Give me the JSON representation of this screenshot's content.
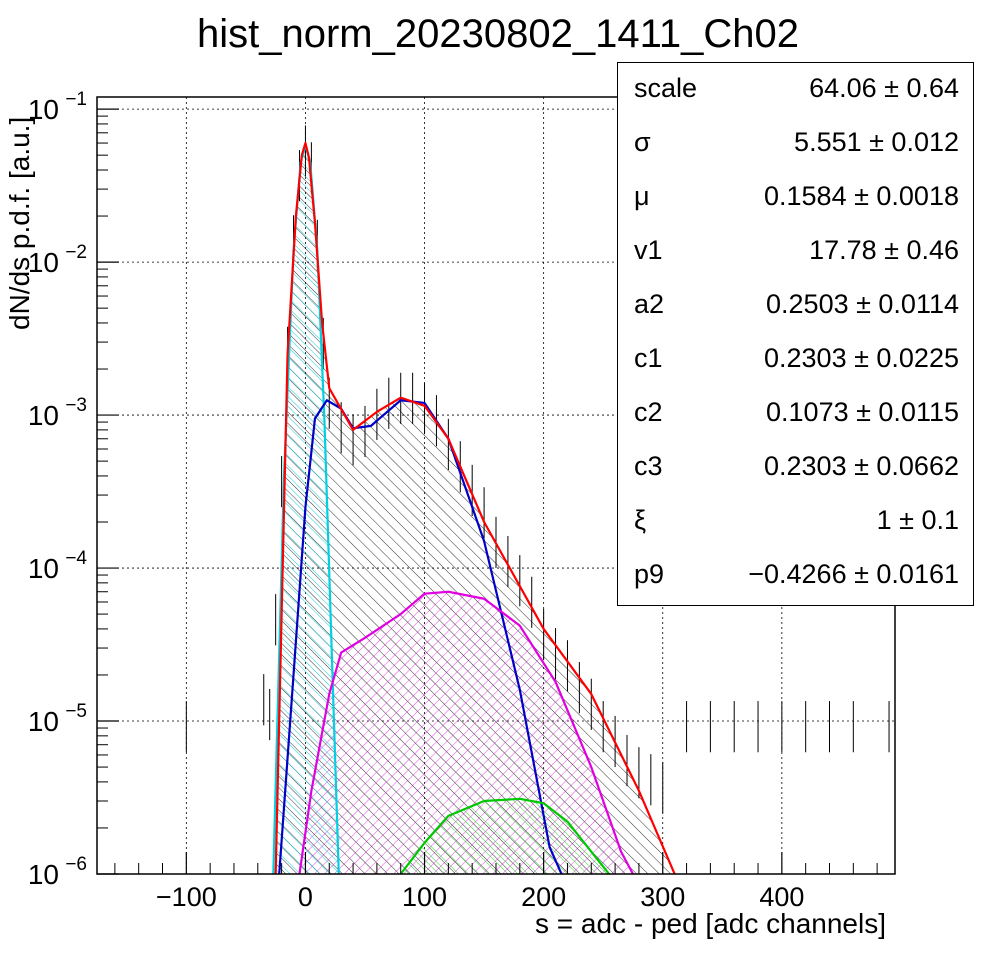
{
  "chart_data": {
    "type": "line",
    "title": "hist_norm_20230802_1411_Ch02",
    "xlabel": "s = adc - ped [adc channels]",
    "ylabel": "dN/ds p.d.f. [a.u.]",
    "xlim": [
      -175,
      495
    ],
    "ylim": [
      1e-06,
      0.12
    ],
    "yscale": "log",
    "grid": true,
    "x_ticks": [
      "−100",
      "0",
      "100",
      "200",
      "300",
      "400"
    ],
    "y_ticks": [
      {
        "base": "10",
        "exp": "−1"
      },
      {
        "base": "10",
        "exp": "−2"
      },
      {
        "base": "10",
        "exp": "−3"
      },
      {
        "base": "10",
        "exp": "−4"
      },
      {
        "base": "10",
        "exp": "−5"
      },
      {
        "base": "10",
        "exp": "−6"
      }
    ],
    "series": [
      {
        "color": "#ff0000",
        "x": [
          -25,
          -15,
          -8,
          -3,
          0,
          3,
          8,
          14,
          20,
          40,
          60,
          80,
          100,
          120,
          150,
          200,
          240,
          280,
          310
        ],
        "y": [
          1e-06,
          0.0025,
          0.02,
          0.05,
          0.06,
          0.048,
          0.018,
          0.004,
          0.0015,
          0.0008,
          0.00105,
          0.0013,
          0.00115,
          0.0007,
          0.0002,
          4e-05,
          1.5e-05,
          3.5e-06,
          1e-06
        ]
      },
      {
        "color": "#00d0e0",
        "x": [
          -27,
          -18,
          -10,
          -4,
          0,
          4,
          10,
          16,
          22,
          28
        ],
        "y": [
          1e-06,
          0.0004,
          0.012,
          0.045,
          0.058,
          0.045,
          0.012,
          0.0009,
          3e-05,
          1e-06
        ]
      },
      {
        "color": "#0000c8",
        "x": [
          -22,
          -10,
          0,
          8,
          18,
          30,
          40,
          55,
          80,
          100,
          120,
          150,
          180,
          205,
          215
        ],
        "y": [
          1e-06,
          2e-05,
          0.00025,
          0.00095,
          0.00125,
          0.0011,
          0.00082,
          0.00085,
          0.00125,
          0.0012,
          0.0007,
          0.00015,
          1.6e-05,
          1.5e-06,
          1e-06
        ]
      },
      {
        "color": "#e000e0",
        "x": [
          -5,
          5,
          20,
          30,
          50,
          80,
          100,
          120,
          150,
          180,
          210,
          240,
          265,
          275
        ],
        "y": [
          1e-06,
          3.5e-06,
          1.5e-05,
          2.8e-05,
          3.5e-05,
          5e-05,
          6.8e-05,
          7e-05,
          6.3e-05,
          4.2e-05,
          1.8e-05,
          5e-06,
          1.4e-06,
          1e-06
        ]
      },
      {
        "color": "#00c800",
        "x": [
          80,
          100,
          120,
          150,
          180,
          200,
          220,
          240,
          255
        ],
        "y": [
          1e-06,
          1.6e-06,
          2.4e-06,
          3e-06,
          3.1e-06,
          2.9e-06,
          2.2e-06,
          1.4e-06,
          1e-06
        ]
      }
    ],
    "histogram": {
      "x": [
        -100,
        -35,
        -30,
        -25,
        -20,
        -15,
        -10,
        -5,
        0,
        5,
        10,
        15,
        20,
        30,
        40,
        50,
        60,
        70,
        80,
        90,
        100,
        110,
        120,
        130,
        140,
        150,
        160,
        170,
        180,
        190,
        200,
        210,
        220,
        230,
        240,
        250,
        260,
        270,
        280,
        290,
        300,
        320,
        340,
        360,
        380,
        400,
        420,
        440,
        460,
        490
      ],
      "y": [
        1e-05,
        1.5e-05,
        1.2e-05,
        5e-05,
        0.0004,
        0.0028,
        0.015,
        0.04,
        0.058,
        0.045,
        0.014,
        0.0032,
        0.0013,
        0.0009,
        0.00075,
        0.00085,
        0.0011,
        0.0013,
        0.0014,
        0.0014,
        0.0012,
        0.001,
        0.0007,
        0.0005,
        0.00035,
        0.00025,
        0.00016,
        0.00012,
        9e-05,
        6.5e-05,
        4e-05,
        3e-05,
        2.5e-05,
        1.8e-05,
        1.4e-05,
        1e-05,
        8e-06,
        6e-06,
        5e-06,
        4.5e-06,
        4e-06,
        1e-05,
        1e-05,
        1e-05,
        1e-05,
        1e-05,
        1e-05,
        1e-05,
        1e-05,
        1e-05
      ]
    }
  },
  "stats": [
    {
      "name": "scale",
      "value": "64.06 ± 0.64"
    },
    {
      "name": "σ",
      "value": "5.551 ± 0.012"
    },
    {
      "name": "μ",
      "value": "0.1584 ± 0.0018"
    },
    {
      "name": "v1",
      "value": "17.78 ± 0.46"
    },
    {
      "name": "a2",
      "value": "0.2503 ± 0.0114"
    },
    {
      "name": "c1",
      "value": "0.2303 ± 0.0225"
    },
    {
      "name": "c2",
      "value": "0.1073 ± 0.0115"
    },
    {
      "name": "c3",
      "value": "0.2303 ± 0.0662"
    },
    {
      "name": "ξ",
      "value": "1 ± 0.1"
    },
    {
      "name": "p9",
      "value": "−0.4266 ± 0.0161"
    }
  ]
}
